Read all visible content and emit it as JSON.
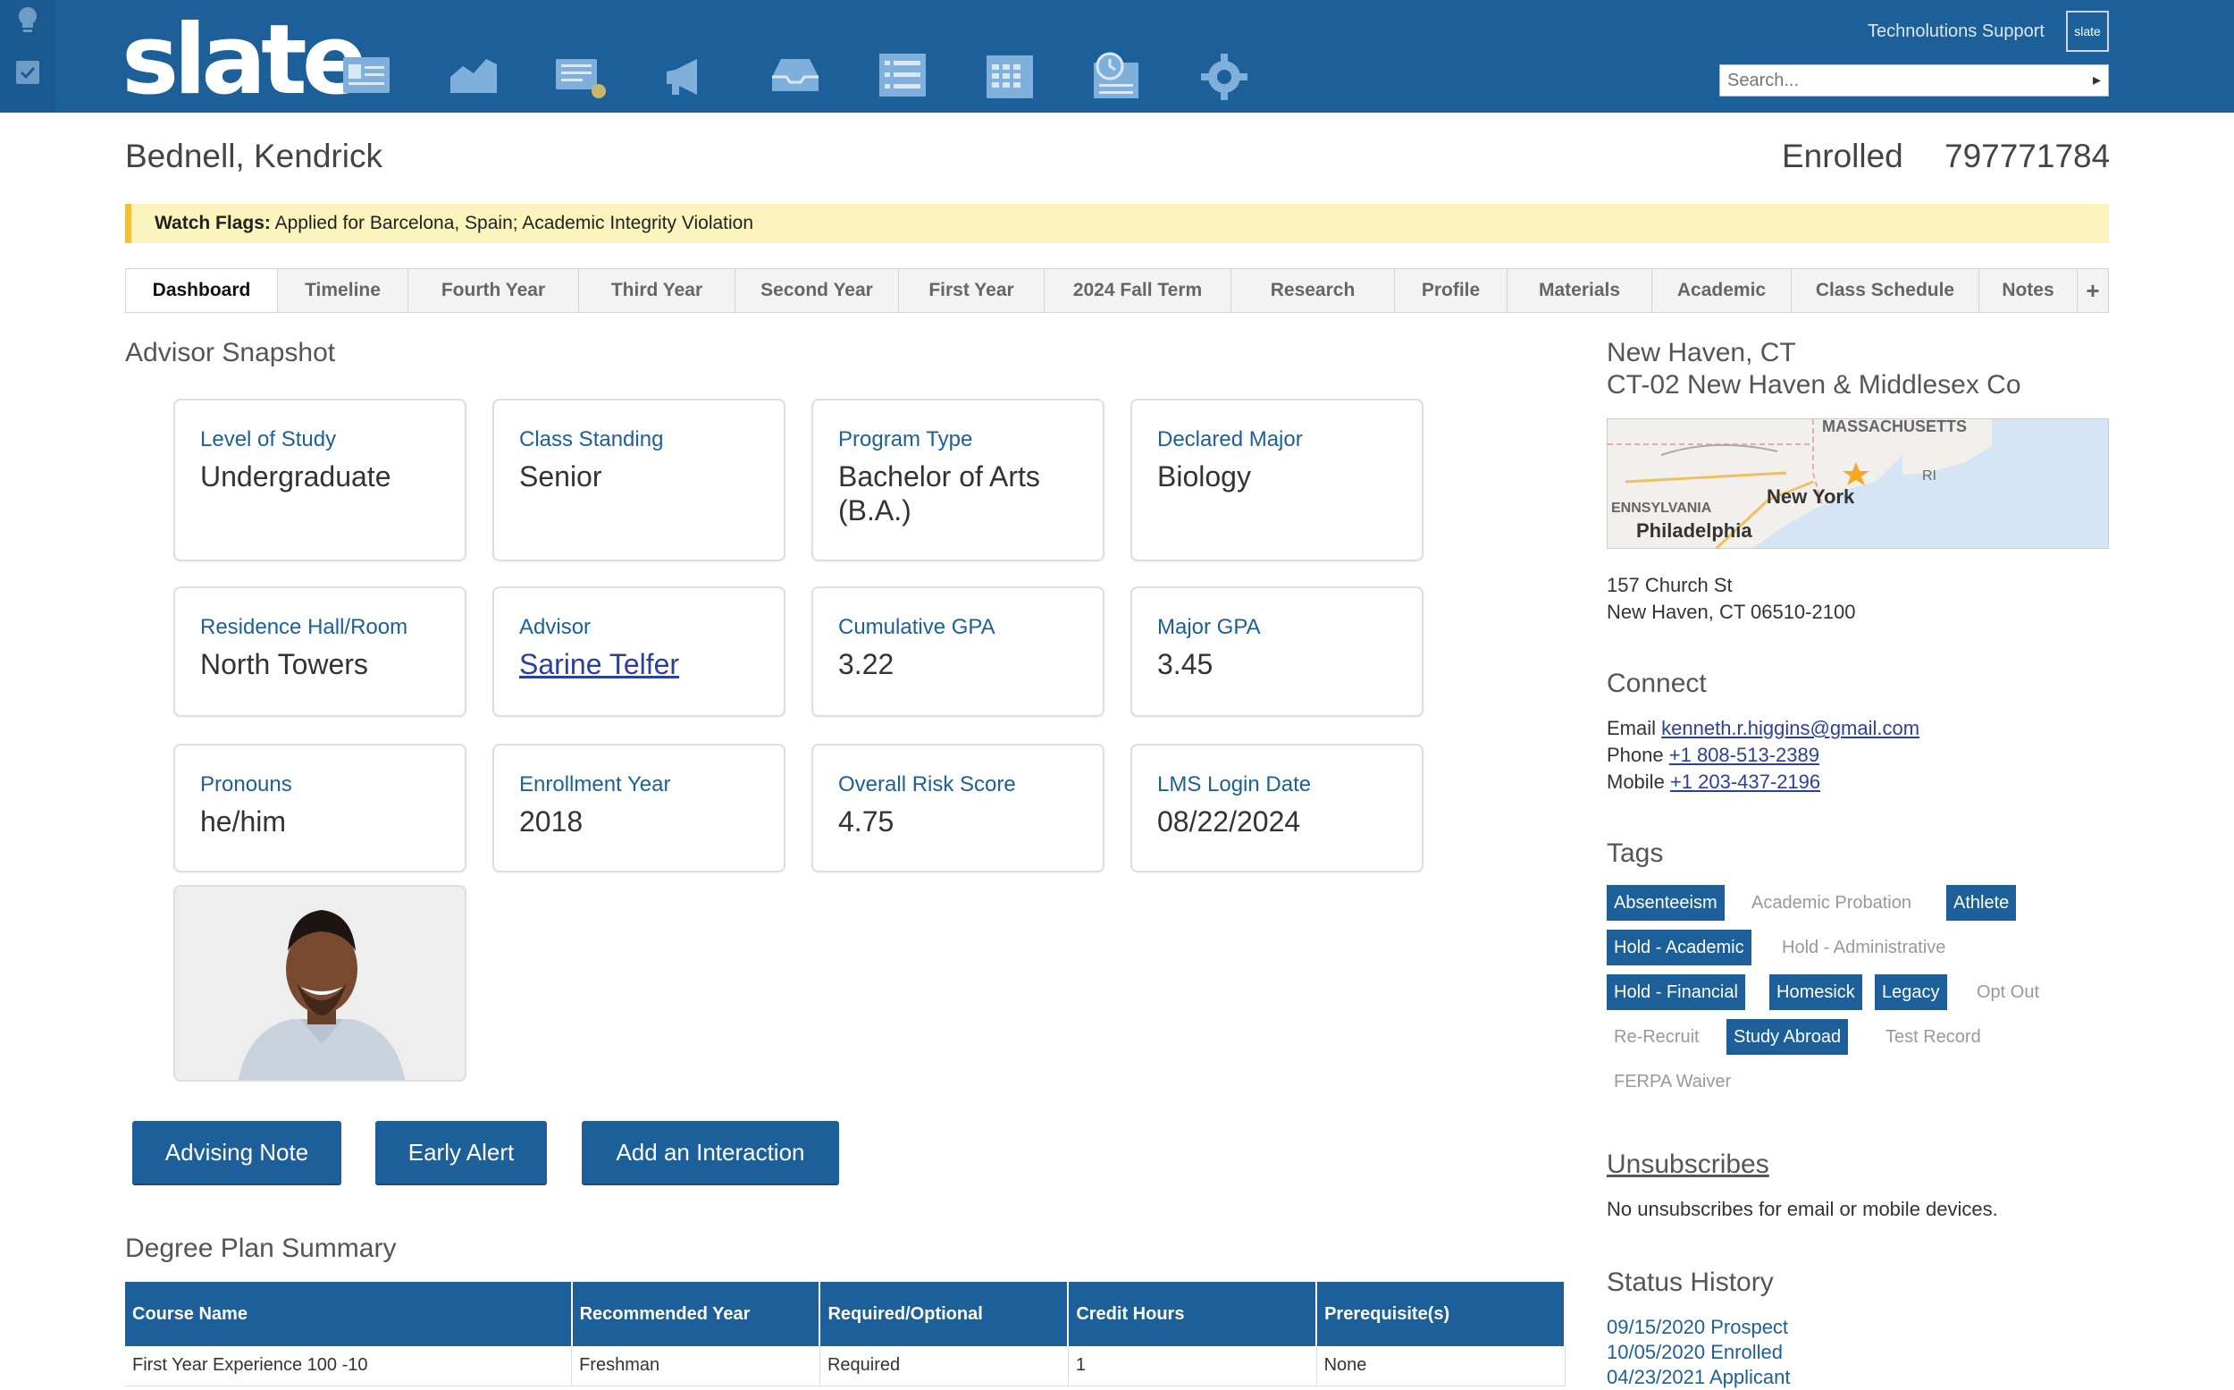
{
  "app": {
    "logo": "slate",
    "support": "Technolutions Support",
    "support_badge": "slate",
    "search_placeholder": "Search...",
    "nav_icons": [
      "directory-icon",
      "dashboard-chart-icon",
      "inbox-icon",
      "campaign-megaphone-icon",
      "deliver-tray-icon",
      "list-icon",
      "calendar-icon",
      "schedule-clock-icon",
      "settings-gear-icon"
    ]
  },
  "header": {
    "name": "Bednell, Kendrick",
    "status": "Enrolled",
    "id": "797771784"
  },
  "watch_flags": {
    "label": "Watch Flags:",
    "text": "Applied for Barcelona, Spain; Academic Integrity Violation"
  },
  "tabs": [
    "Dashboard",
    "Timeline",
    "Fourth Year",
    "Third Year",
    "Second Year",
    "First Year",
    "2024 Fall Term",
    "Research",
    "Profile",
    "Materials",
    "Academic",
    "Class Schedule",
    "Notes",
    "+"
  ],
  "snapshot": {
    "title": "Advisor Snapshot",
    "cards": [
      {
        "label": "Level of Study",
        "value": "Undergraduate"
      },
      {
        "label": "Class Standing",
        "value": "Senior"
      },
      {
        "label": "Program Type",
        "value": "Bachelor of Arts (B.A.)"
      },
      {
        "label": "Declared Major",
        "value": "Biology"
      },
      {
        "label": "Residence Hall/Room",
        "value": "North Towers"
      },
      {
        "label": "Advisor",
        "value": "Sarine Telfer"
      },
      {
        "label": "Cumulative GPA",
        "value": "3.22"
      },
      {
        "label": "Major GPA",
        "value": "3.45"
      },
      {
        "label": "Pronouns",
        "value": "he/him"
      },
      {
        "label": "Enrollment Year",
        "value": "2018"
      },
      {
        "label": "Overall Risk Score",
        "value": "4.75"
      },
      {
        "label": "LMS Login Date",
        "value": "08/22/2024"
      }
    ]
  },
  "buttons": {
    "advising_note": "Advising Note",
    "early_alert": "Early Alert",
    "add_interaction": "Add an Interaction"
  },
  "degree_plan": {
    "title": "Degree Plan Summary",
    "columns": [
      "Course Name",
      "Recommended Year",
      "Required/Optional",
      "Credit Hours",
      "Prerequisite(s)"
    ],
    "rows": [
      [
        "First Year Experience 100 -10",
        "Freshman",
        "Required",
        "1",
        "None"
      ]
    ]
  },
  "location": {
    "city": "New Haven, CT",
    "district": "CT-02 New Haven & Middlesex Co",
    "map_labels": {
      "state_ma": "MASSACHUSETTS",
      "state_ri": "RI",
      "state_pa": "ENNSYLVANIA",
      "city_ny": "New York",
      "city_phl": "Philadelphia"
    },
    "address_line1": "157 Church St",
    "address_line2": "New Haven, CT 06510-2100"
  },
  "connect": {
    "title": "Connect",
    "email_label": "Email",
    "email": "kenneth.r.higgins@gmail.com",
    "phone_label": "Phone",
    "phone": "+1 808-513-2389",
    "mobile_label": "Mobile",
    "mobile": "+1 203-437-2196"
  },
  "tags": {
    "title": "Tags",
    "items": [
      {
        "label": "Absenteeism",
        "active": true
      },
      {
        "label": "Academic Probation",
        "active": false
      },
      {
        "label": "Athlete",
        "active": true
      },
      {
        "label": "Hold - Academic",
        "active": true
      },
      {
        "label": "Hold - Administrative",
        "active": false
      },
      {
        "label": "Hold - Financial",
        "active": true
      },
      {
        "label": "Homesick",
        "active": true
      },
      {
        "label": "Legacy",
        "active": true
      },
      {
        "label": "Opt Out",
        "active": false
      },
      {
        "label": "Re-Recruit",
        "active": false
      },
      {
        "label": "Study Abroad",
        "active": true
      },
      {
        "label": "Test Record",
        "active": false
      },
      {
        "label": "FERPA Waiver",
        "active": false
      }
    ]
  },
  "unsubscribes": {
    "title": "Unsubscribes",
    "text": "No unsubscribes for email or mobile devices."
  },
  "status_history": {
    "title": "Status History",
    "items": [
      "09/15/2020 Prospect",
      "10/05/2020 Enrolled",
      "04/23/2021 Applicant"
    ]
  }
}
